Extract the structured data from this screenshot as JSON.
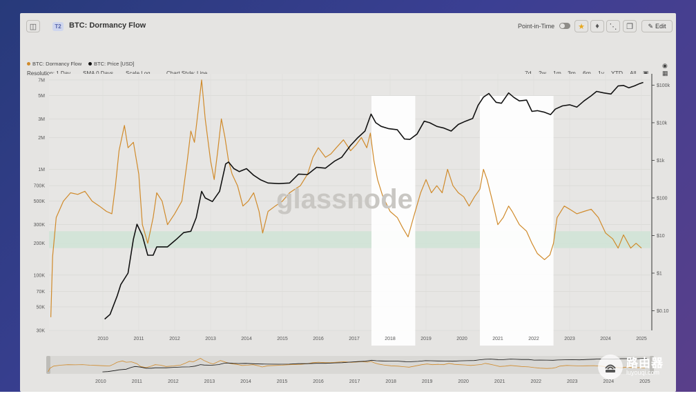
{
  "header": {
    "chip": "T2",
    "title": "BTC: Dormancy Flow",
    "point_in_time": "Point-in-Time",
    "edit_label": "Edit"
  },
  "controls": {
    "resolution": "Resolution: 1 Day",
    "sma": "SMA 0 Days",
    "scale": "Scale Log",
    "style": "Chart Style: Line",
    "ranges": [
      "7d",
      "2w",
      "1m",
      "3m",
      "6m",
      "1y",
      "YTD",
      "All"
    ]
  },
  "colors": {
    "dormancy": "#d08a2a",
    "price": "#111111",
    "band": "#cfe3d6"
  },
  "watermark": {
    "logo": "glassnode",
    "site_name": "路由器",
    "site_url": "luyouqi.com"
  },
  "chart_data": {
    "type": "line",
    "legend_placement": "top-left",
    "grid": true,
    "x_ticks": [
      "2010",
      "2011",
      "2012",
      "2013",
      "2014",
      "2015",
      "2016",
      "2017",
      "2018",
      "2019",
      "2020",
      "2021",
      "2022",
      "2023",
      "2024",
      "2025"
    ],
    "y_left_ticks": [
      "7M",
      "5M",
      "3M",
      "2M",
      "1M",
      "700K",
      "500K",
      "300K",
      "200K",
      "100K",
      "70K",
      "50K",
      "30K"
    ],
    "y_right_ticks": [
      "$100k",
      "$10k",
      "$1k",
      "$100",
      "$10",
      "$1",
      "$0.10"
    ],
    "y_left_range": [
      30000,
      8000000
    ],
    "y_right_range": [
      0.03,
      200000
    ],
    "green_band": [
      180000,
      260000
    ],
    "highlights": [
      {
        "from": 2017.98,
        "to": 2019.2
      },
      {
        "from": 2021.0,
        "to": 2023.05
      }
    ],
    "series": [
      {
        "name": "BTC: Dormancy Flow",
        "axis": "left",
        "points": [
          [
            2009.05,
            40000
          ],
          [
            2009.1,
            150000
          ],
          [
            2009.2,
            350000
          ],
          [
            2009.4,
            500000
          ],
          [
            2009.6,
            600000
          ],
          [
            2009.8,
            580000
          ],
          [
            2010.0,
            620000
          ],
          [
            2010.2,
            500000
          ],
          [
            2010.4,
            450000
          ],
          [
            2010.6,
            400000
          ],
          [
            2010.75,
            380000
          ],
          [
            2010.85,
            700000
          ],
          [
            2010.95,
            1500000
          ],
          [
            2011.1,
            2600000
          ],
          [
            2011.2,
            1600000
          ],
          [
            2011.35,
            1800000
          ],
          [
            2011.5,
            900000
          ],
          [
            2011.6,
            300000
          ],
          [
            2011.75,
            200000
          ],
          [
            2011.9,
            350000
          ],
          [
            2012.0,
            600000
          ],
          [
            2012.15,
            500000
          ],
          [
            2012.3,
            300000
          ],
          [
            2012.5,
            380000
          ],
          [
            2012.7,
            500000
          ],
          [
            2012.85,
            1200000
          ],
          [
            2012.95,
            2300000
          ],
          [
            2013.05,
            1800000
          ],
          [
            2013.15,
            3500000
          ],
          [
            2013.25,
            7000000
          ],
          [
            2013.35,
            3000000
          ],
          [
            2013.5,
            1200000
          ],
          [
            2013.6,
            800000
          ],
          [
            2013.7,
            1500000
          ],
          [
            2013.8,
            3000000
          ],
          [
            2013.9,
            2000000
          ],
          [
            2014.0,
            1200000
          ],
          [
            2014.1,
            900000
          ],
          [
            2014.25,
            700000
          ],
          [
            2014.4,
            450000
          ],
          [
            2014.55,
            500000
          ],
          [
            2014.7,
            600000
          ],
          [
            2014.85,
            400000
          ],
          [
            2014.95,
            250000
          ],
          [
            2015.1,
            400000
          ],
          [
            2015.3,
            450000
          ],
          [
            2015.5,
            500000
          ],
          [
            2015.7,
            600000
          ],
          [
            2015.85,
            650000
          ],
          [
            2016.0,
            700000
          ],
          [
            2016.2,
            900000
          ],
          [
            2016.35,
            1300000
          ],
          [
            2016.5,
            1600000
          ],
          [
            2016.7,
            1300000
          ],
          [
            2016.85,
            1400000
          ],
          [
            2017.0,
            1600000
          ],
          [
            2017.2,
            1900000
          ],
          [
            2017.4,
            1500000
          ],
          [
            2017.55,
            1700000
          ],
          [
            2017.7,
            2000000
          ],
          [
            2017.85,
            1600000
          ],
          [
            2017.95,
            2200000
          ],
          [
            2018.05,
            1200000
          ],
          [
            2018.15,
            800000
          ],
          [
            2018.3,
            550000
          ],
          [
            2018.5,
            400000
          ],
          [
            2018.7,
            350000
          ],
          [
            2018.85,
            280000
          ],
          [
            2019.0,
            230000
          ],
          [
            2019.15,
            350000
          ],
          [
            2019.35,
            600000
          ],
          [
            2019.5,
            800000
          ],
          [
            2019.65,
            600000
          ],
          [
            2019.8,
            700000
          ],
          [
            2019.95,
            600000
          ],
          [
            2020.1,
            1000000
          ],
          [
            2020.25,
            700000
          ],
          [
            2020.4,
            600000
          ],
          [
            2020.55,
            550000
          ],
          [
            2020.7,
            450000
          ],
          [
            2020.85,
            550000
          ],
          [
            2021.0,
            650000
          ],
          [
            2021.1,
            1000000
          ],
          [
            2021.2,
            800000
          ],
          [
            2021.35,
            500000
          ],
          [
            2021.5,
            300000
          ],
          [
            2021.65,
            350000
          ],
          [
            2021.8,
            450000
          ],
          [
            2021.9,
            400000
          ],
          [
            2022.1,
            300000
          ],
          [
            2022.3,
            260000
          ],
          [
            2022.45,
            200000
          ],
          [
            2022.6,
            160000
          ],
          [
            2022.8,
            140000
          ],
          [
            2022.95,
            155000
          ],
          [
            2023.05,
            200000
          ],
          [
            2023.15,
            350000
          ],
          [
            2023.35,
            450000
          ],
          [
            2023.5,
            420000
          ],
          [
            2023.7,
            380000
          ],
          [
            2023.9,
            400000
          ],
          [
            2024.1,
            420000
          ],
          [
            2024.3,
            350000
          ],
          [
            2024.5,
            250000
          ],
          [
            2024.7,
            220000
          ],
          [
            2024.85,
            180000
          ],
          [
            2025.0,
            240000
          ],
          [
            2025.2,
            180000
          ],
          [
            2025.35,
            200000
          ],
          [
            2025.5,
            180000
          ]
        ]
      },
      {
        "name": "BTC: Price [USD]",
        "axis": "right",
        "points": [
          [
            2010.55,
            0.06
          ],
          [
            2010.7,
            0.08
          ],
          [
            2010.9,
            0.25
          ],
          [
            2011.0,
            0.5
          ],
          [
            2011.2,
            1
          ],
          [
            2011.35,
            8
          ],
          [
            2011.45,
            20
          ],
          [
            2011.6,
            10
          ],
          [
            2011.75,
            3
          ],
          [
            2011.9,
            3
          ],
          [
            2012.0,
            5
          ],
          [
            2012.3,
            5
          ],
          [
            2012.55,
            8
          ],
          [
            2012.75,
            12
          ],
          [
            2012.95,
            13
          ],
          [
            2013.1,
            30
          ],
          [
            2013.25,
            150
          ],
          [
            2013.35,
            100
          ],
          [
            2013.55,
            80
          ],
          [
            2013.75,
            150
          ],
          [
            2013.92,
            800
          ],
          [
            2014.0,
            900
          ],
          [
            2014.15,
            600
          ],
          [
            2014.3,
            500
          ],
          [
            2014.5,
            600
          ],
          [
            2014.7,
            400
          ],
          [
            2014.9,
            300
          ],
          [
            2015.1,
            250
          ],
          [
            2015.4,
            240
          ],
          [
            2015.7,
            250
          ],
          [
            2015.95,
            430
          ],
          [
            2016.2,
            420
          ],
          [
            2016.45,
            650
          ],
          [
            2016.7,
            620
          ],
          [
            2016.95,
            950
          ],
          [
            2017.15,
            1200
          ],
          [
            2017.4,
            2500
          ],
          [
            2017.6,
            4000
          ],
          [
            2017.8,
            6000
          ],
          [
            2017.97,
            17000
          ],
          [
            2018.1,
            10000
          ],
          [
            2018.25,
            8000
          ],
          [
            2018.45,
            7000
          ],
          [
            2018.7,
            6500
          ],
          [
            2018.9,
            3700
          ],
          [
            2019.05,
            3600
          ],
          [
            2019.25,
            5000
          ],
          [
            2019.45,
            11000
          ],
          [
            2019.6,
            10000
          ],
          [
            2019.8,
            8000
          ],
          [
            2020.0,
            7200
          ],
          [
            2020.2,
            6000
          ],
          [
            2020.4,
            9000
          ],
          [
            2020.6,
            11000
          ],
          [
            2020.8,
            13000
          ],
          [
            2020.95,
            29000
          ],
          [
            2021.1,
            48000
          ],
          [
            2021.25,
            60000
          ],
          [
            2021.45,
            35000
          ],
          [
            2021.6,
            33000
          ],
          [
            2021.8,
            62000
          ],
          [
            2021.95,
            47000
          ],
          [
            2022.1,
            38000
          ],
          [
            2022.3,
            40000
          ],
          [
            2022.45,
            20000
          ],
          [
            2022.6,
            21000
          ],
          [
            2022.8,
            19000
          ],
          [
            2022.97,
            16500
          ],
          [
            2023.1,
            23000
          ],
          [
            2023.3,
            28000
          ],
          [
            2023.5,
            30000
          ],
          [
            2023.7,
            26000
          ],
          [
            2023.9,
            38000
          ],
          [
            2024.1,
            52000
          ],
          [
            2024.25,
            68000
          ],
          [
            2024.45,
            62000
          ],
          [
            2024.65,
            58000
          ],
          [
            2024.85,
            95000
          ],
          [
            2025.0,
            98000
          ],
          [
            2025.15,
            85000
          ],
          [
            2025.3,
            95000
          ],
          [
            2025.45,
            110000
          ],
          [
            2025.55,
            118000
          ]
        ]
      }
    ]
  }
}
